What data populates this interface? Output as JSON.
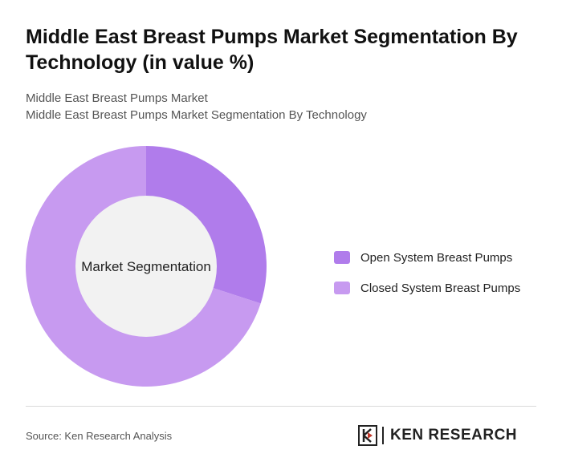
{
  "header": {
    "title": "Middle East Breast Pumps Market Segmentation By Technology (in value %)",
    "subtitle_line1": "Middle East Breast Pumps Market",
    "subtitle_line2": "Middle East Breast Pumps Market Segmentation By Technology"
  },
  "chart_data": {
    "type": "pie",
    "center_label": "Market Segmentation",
    "legend_position": "right",
    "categories": [
      "Open System Breast Pumps",
      "Closed System Breast Pumps"
    ],
    "values": [
      30,
      70
    ],
    "colors": [
      "#b07ceb",
      "#c79af0"
    ]
  },
  "footer": {
    "source": "Source: Ken Research Analysis",
    "logo_text": "KEN RESEARCH"
  }
}
